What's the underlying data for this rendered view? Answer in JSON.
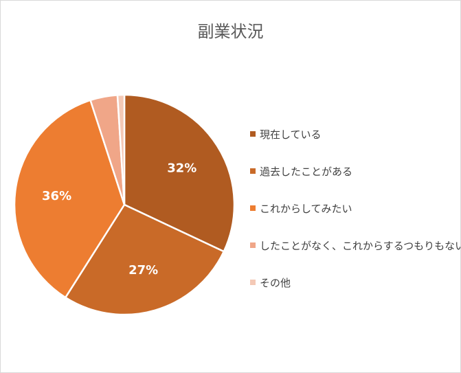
{
  "chart_data": {
    "type": "pie",
    "title": "副業状況",
    "categories": [
      "現在している",
      "過去したことがある",
      "これからしてみたい",
      "したことがなく、これからするつもりもない",
      "その他"
    ],
    "values": [
      32,
      27,
      36,
      4,
      1
    ],
    "data_labels": [
      "32%",
      "27%",
      "36%",
      "",
      ""
    ],
    "colors": [
      "#B05B21",
      "#C96A28",
      "#ED7D31",
      "#F0A688",
      "#F4C9B6"
    ],
    "legend_position": "right"
  }
}
